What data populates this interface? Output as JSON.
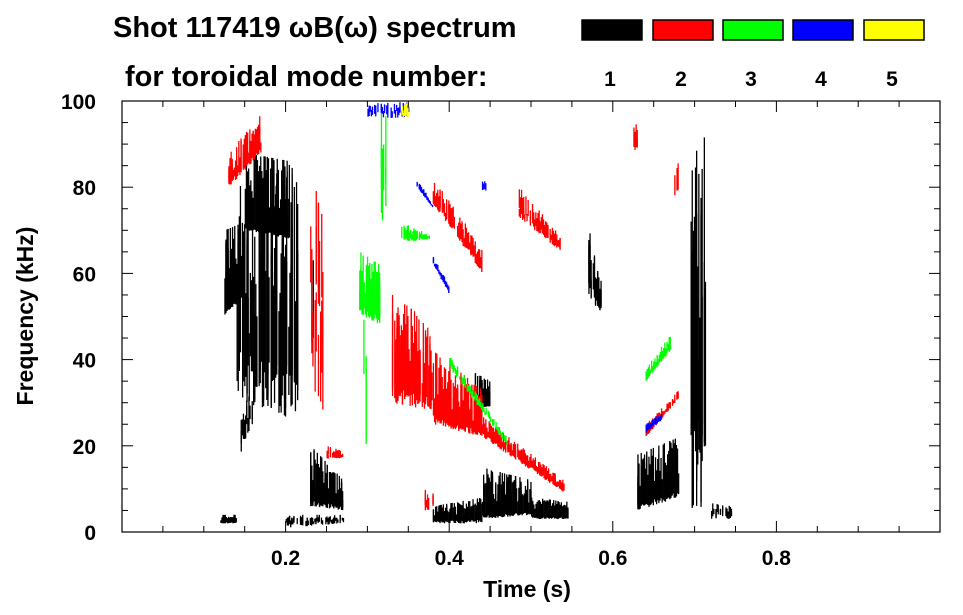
{
  "chart_data": {
    "type": "heatmap",
    "title": "Shot 117419 ωB(ω) spectrum",
    "legend_title": "for toroidal mode number:",
    "legend": [
      {
        "label": "1",
        "color": "#000000"
      },
      {
        "label": "2",
        "color": "#ff0000"
      },
      {
        "label": "3",
        "color": "#00ff00"
      },
      {
        "label": "4",
        "color": "#0000ff"
      },
      {
        "label": "5",
        "color": "#ffff00"
      }
    ],
    "xlabel": "Time (s)",
    "ylabel": "Frequency (kHz)",
    "xlim": [
      0,
      1.0
    ],
    "ylim": [
      0,
      100
    ],
    "xticks": [
      0.2,
      0.4,
      0.6,
      0.8
    ],
    "xtick_labels": [
      "0.2",
      "0.4",
      "0.6",
      "0.8"
    ],
    "yticks": [
      0,
      20,
      40,
      60,
      80,
      100
    ],
    "ytick_labels": [
      "0",
      "20",
      "40",
      "60",
      "80",
      "100"
    ],
    "feature_columns": [
      "mode",
      "t_start",
      "t_end",
      "f_low_start",
      "f_low_end",
      "f_high_start",
      "f_high_end",
      "fill"
    ],
    "features": [
      [
        1,
        0.125,
        0.15,
        50,
        55,
        70,
        72,
        0.9
      ],
      [
        1,
        0.14,
        0.215,
        30,
        25,
        80,
        85,
        0.7
      ],
      [
        1,
        0.15,
        0.205,
        70,
        68,
        88,
        86,
        0.95
      ],
      [
        1,
        0.145,
        0.16,
        18,
        25,
        30,
        35,
        0.4
      ],
      [
        1,
        0.23,
        0.27,
        6,
        5,
        20,
        12,
        0.85
      ],
      [
        1,
        0.225,
        0.235,
        30,
        30,
        80,
        80,
        0.3
      ],
      [
        1,
        0.12,
        0.14,
        2,
        2,
        4,
        4,
        0.8
      ],
      [
        1,
        0.2,
        0.27,
        1,
        2,
        4,
        4,
        0.5
      ],
      [
        1,
        0.43,
        0.45,
        29,
        29,
        37,
        35,
        0.9
      ],
      [
        1,
        0.38,
        0.44,
        2,
        2,
        6,
        8,
        0.8
      ],
      [
        1,
        0.44,
        0.5,
        3,
        4,
        15,
        12,
        0.9
      ],
      [
        1,
        0.5,
        0.545,
        3,
        3,
        8,
        7,
        0.85
      ],
      [
        1,
        0.57,
        0.585,
        55,
        50,
        72,
        60,
        0.6
      ],
      [
        1,
        0.63,
        0.68,
        5,
        8,
        18,
        22,
        0.85
      ],
      [
        1,
        0.695,
        0.715,
        5,
        5,
        98,
        90,
        0.7
      ],
      [
        1,
        0.72,
        0.745,
        3,
        3,
        8,
        6,
        0.5
      ],
      [
        2,
        0.13,
        0.17,
        80,
        88,
        88,
        97,
        0.8
      ],
      [
        2,
        0.23,
        0.245,
        30,
        28,
        80,
        78,
        0.25
      ],
      [
        2,
        0.33,
        0.38,
        30,
        28,
        55,
        48,
        0.8
      ],
      [
        2,
        0.38,
        0.44,
        25,
        22,
        42,
        33,
        0.85
      ],
      [
        2,
        0.38,
        0.44,
        76,
        60,
        82,
        66,
        0.7
      ],
      [
        2,
        0.44,
        0.54,
        22,
        9,
        27,
        12,
        0.7
      ],
      [
        2,
        0.485,
        0.535,
        73,
        65,
        80,
        69,
        0.6
      ],
      [
        2,
        0.64,
        0.68,
        22,
        31,
        25,
        33,
        0.7
      ],
      [
        2,
        0.25,
        0.27,
        17,
        17,
        20,
        19,
        0.6
      ],
      [
        2,
        0.37,
        0.38,
        5,
        5,
        10,
        10,
        0.6
      ],
      [
        2,
        0.625,
        0.63,
        88,
        88,
        95,
        95,
        0.6
      ],
      [
        2,
        0.675,
        0.68,
        78,
        78,
        86,
        86,
        0.6
      ],
      [
        3,
        0.29,
        0.315,
        50,
        48,
        65,
        62,
        0.8
      ],
      [
        3,
        0.315,
        0.322,
        70,
        70,
        100,
        100,
        0.35
      ],
      [
        3,
        0.34,
        0.375,
        67,
        68,
        72,
        69,
        0.7
      ],
      [
        3,
        0.4,
        0.47,
        38,
        20,
        41,
        22,
        0.6
      ],
      [
        3,
        0.64,
        0.67,
        35,
        42,
        38,
        46,
        0.7
      ],
      [
        3,
        0.295,
        0.3,
        20,
        20,
        60,
        60,
        0.3
      ],
      [
        4,
        0.3,
        0.35,
        96,
        96,
        100,
        100,
        0.4
      ],
      [
        4,
        0.36,
        0.38,
        80,
        75,
        82,
        76,
        0.7
      ],
      [
        4,
        0.38,
        0.4,
        62,
        55,
        64,
        57,
        0.7
      ],
      [
        4,
        0.44,
        0.445,
        79,
        79,
        82,
        82,
        0.6
      ],
      [
        4,
        0.64,
        0.66,
        23,
        26,
        25,
        28,
        0.7
      ],
      [
        5,
        0.342,
        0.35,
        96,
        96,
        100,
        100,
        0.6
      ]
    ]
  }
}
